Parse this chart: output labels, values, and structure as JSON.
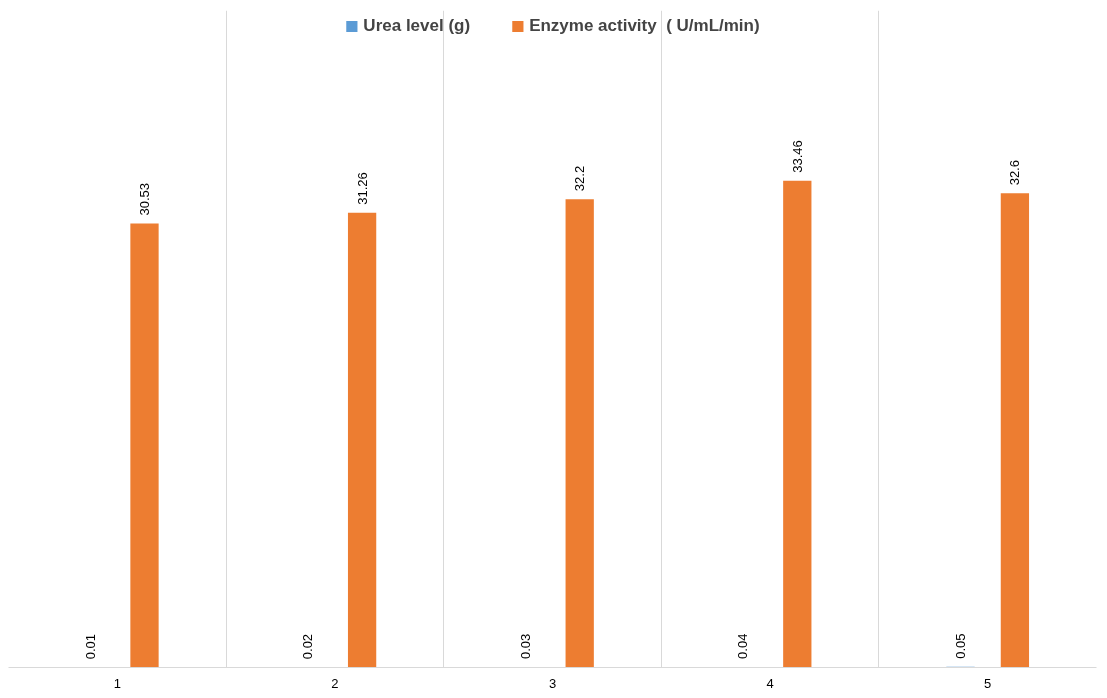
{
  "chart_data": {
    "type": "bar",
    "categories": [
      "1",
      "2",
      "3",
      "4",
      "5"
    ],
    "series": [
      {
        "name": "Urea level (g)",
        "color": "#5b9bd5",
        "values": [
          0.01,
          0.02,
          0.03,
          0.04,
          0.05
        ]
      },
      {
        "name": "Enzyme activity  ( U/mL/min)",
        "color": "#ed7d31",
        "values": [
          30.53,
          31.26,
          32.2,
          33.46,
          32.6
        ]
      }
    ],
    "data_labels": true,
    "grid": "x",
    "legend": "top"
  }
}
